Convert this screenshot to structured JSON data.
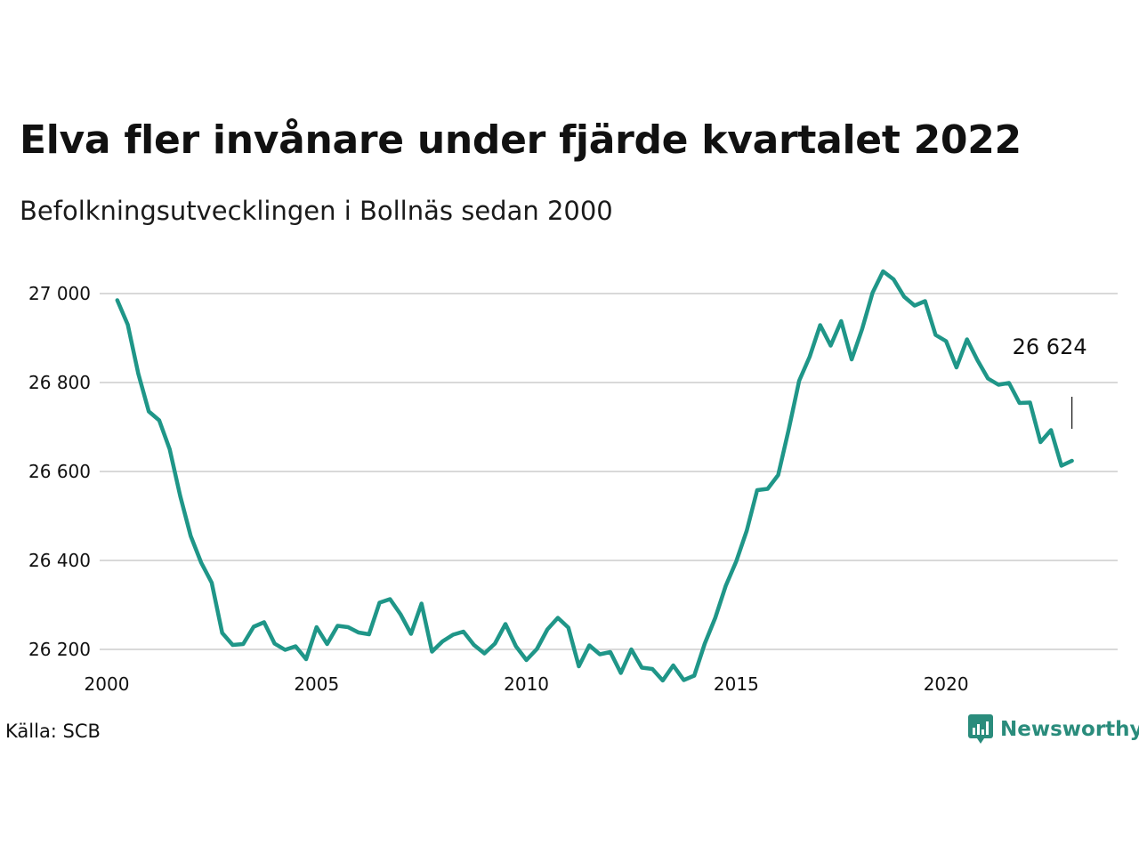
{
  "header": {
    "title": "Elva fler invånare under fjärde kvartalet 2022",
    "subtitle": "Befolkningsutvecklingen i Bollnäs sedan 2000"
  },
  "footer": {
    "source": "Källa: SCB",
    "brand": "Newsworthy",
    "brand_icon": "newsworthy-logo-icon",
    "brand_color": "#2a8c7c"
  },
  "chart_data": {
    "type": "line",
    "title": "Elva fler invånare under fjärde kvartalet 2022",
    "subtitle": "Befolkningsutvecklingen i Bollnäs sedan 2000",
    "xlabel": "",
    "ylabel": "",
    "xlim": [
      2000,
      2023.75
    ],
    "ylim": [
      26100,
      27060
    ],
    "x_ticks": [
      2000,
      2005,
      2010,
      2015,
      2020
    ],
    "y_ticks": [
      26200,
      26400,
      26600,
      26800,
      27000
    ],
    "y_tick_labels": [
      "26 200",
      "26 400",
      "26 600",
      "26 800",
      "27 000"
    ],
    "grid": "horizontal",
    "line_color": "#1f9688",
    "series": [
      {
        "x": [
          2000.25,
          2000.5,
          2000.75,
          2001.0,
          2001.25,
          2001.5,
          2001.75,
          2002.0,
          2002.25,
          2002.5,
          2002.75,
          2003.0,
          2003.25,
          2003.5,
          2003.75,
          2004.0,
          2004.25,
          2004.5,
          2004.75,
          2005.0,
          2005.25,
          2005.5,
          2005.75,
          2006.0,
          2006.25,
          2006.5,
          2006.75,
          2007.0,
          2007.25,
          2007.5,
          2007.75,
          2008.0,
          2008.25,
          2008.5,
          2008.75,
          2009.0,
          2009.25,
          2009.5,
          2009.75,
          2010.0,
          2010.25,
          2010.5,
          2010.75,
          2011.0,
          2011.25,
          2011.5,
          2011.75,
          2012.0,
          2012.25,
          2012.5,
          2012.75,
          2013.0,
          2013.25,
          2013.5,
          2013.75,
          2014.0,
          2014.25,
          2014.5,
          2014.75,
          2015.0,
          2015.25,
          2015.5,
          2015.75,
          2016.0,
          2016.25,
          2016.5,
          2016.75,
          2017.0,
          2017.25,
          2017.5,
          2017.75,
          2018.0,
          2018.25,
          2018.5,
          2018.75,
          2019.0,
          2019.25,
          2019.5,
          2019.75,
          2020.0,
          2020.25,
          2020.5,
          2020.75,
          2021.0,
          2021.25,
          2021.5,
          2021.75,
          2022.0,
          2022.25,
          2022.5,
          2022.75,
          2023.0
        ],
        "values": [
          26985,
          26930,
          26820,
          26735,
          26715,
          26650,
          26545,
          26455,
          26395,
          26350,
          26237,
          26210,
          26212,
          26251,
          26261,
          26213,
          26199,
          26207,
          26178,
          26250,
          26212,
          26253,
          26250,
          26238,
          26234,
          26305,
          26313,
          26279,
          26235,
          26303,
          26195,
          26218,
          26233,
          26240,
          26210,
          26191,
          26213,
          26257,
          26207,
          26176,
          26201,
          26245,
          26271,
          26249,
          26162,
          26209,
          26189,
          26194,
          26147,
          26200,
          26159,
          26156,
          26130,
          26164,
          26131,
          26141,
          26213,
          26271,
          26343,
          26398,
          26467,
          26558,
          26561,
          26592,
          26694,
          26804,
          26858,
          26929,
          26883,
          26938,
          26852,
          26920,
          27002,
          27050,
          27032,
          26993,
          26973,
          26983,
          26907,
          26893,
          26834,
          26897,
          26850,
          26809,
          26795,
          26799,
          26754,
          26755,
          26666,
          26693,
          26613,
          26624
        ]
      }
    ],
    "annotations": [
      {
        "text": "26 624",
        "x": 2023.0,
        "y": 26624
      }
    ]
  }
}
